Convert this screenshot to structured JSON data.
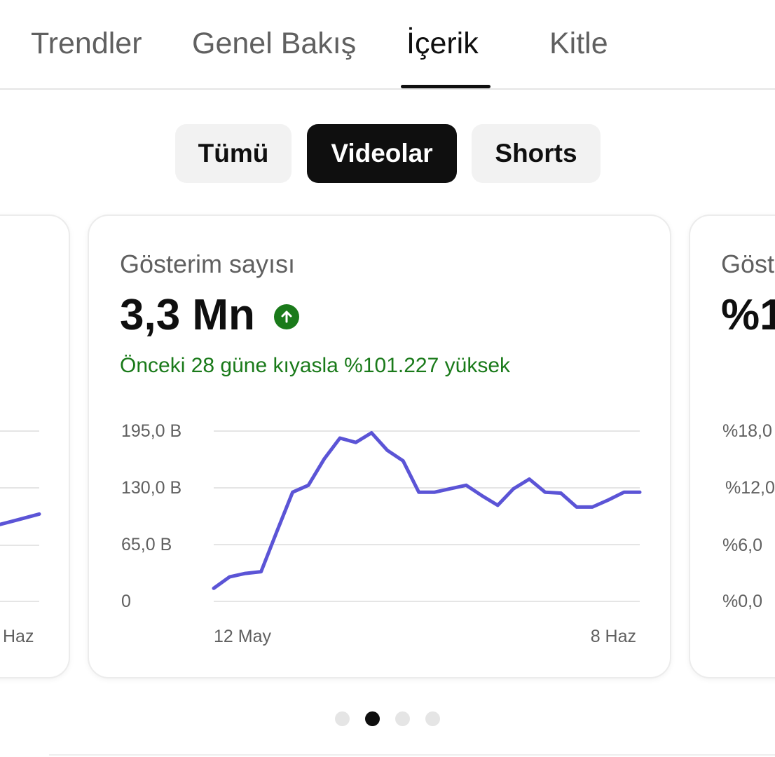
{
  "tabs": [
    {
      "label": "Trendler",
      "active": false
    },
    {
      "label": "Genel Bakış",
      "active": false
    },
    {
      "label": "İçerik",
      "active": true
    },
    {
      "label": "Kitle",
      "active": false
    }
  ],
  "filters": [
    {
      "label": "Tümü",
      "selected": false
    },
    {
      "label": "Videolar",
      "selected": true
    },
    {
      "label": "Shorts",
      "selected": false
    }
  ],
  "cards": {
    "left": {
      "x_end_label": "Haz",
      "series_tail": [
        75,
        82,
        88,
        92,
        96,
        100
      ]
    },
    "main": {
      "title": "Gösterim sayısı",
      "value": "3,3 Mn",
      "trend_icon": "arrow-up-icon",
      "comparison": "Önceki 28 güne kıyasla %101.227 yüksek",
      "accent_color": "#5b54d6",
      "positive_color": "#1a7a1a",
      "chart_data": {
        "type": "line",
        "y_tick_labels": [
          "195,0 B",
          "130,0 B",
          "65,0 B",
          "0"
        ],
        "y_ticks": [
          195,
          130,
          65,
          0
        ],
        "ylim": [
          0,
          195
        ],
        "x_start_label": "12 May",
        "x_end_label": "8 Haz",
        "unit": "B",
        "values": [
          15,
          28,
          32,
          34,
          80,
          125,
          133,
          163,
          187,
          182,
          193,
          173,
          161,
          125,
          125,
          129,
          133,
          121,
          110,
          129,
          140,
          125,
          124,
          108,
          108,
          116,
          125,
          125
        ]
      }
    },
    "right": {
      "title": "Göst",
      "value": "%1",
      "y_tick_labels": [
        "%18,0",
        "%12,0",
        "%6,0",
        "%0,0"
      ]
    }
  },
  "pagination": {
    "count": 4,
    "active_index": 1
  }
}
